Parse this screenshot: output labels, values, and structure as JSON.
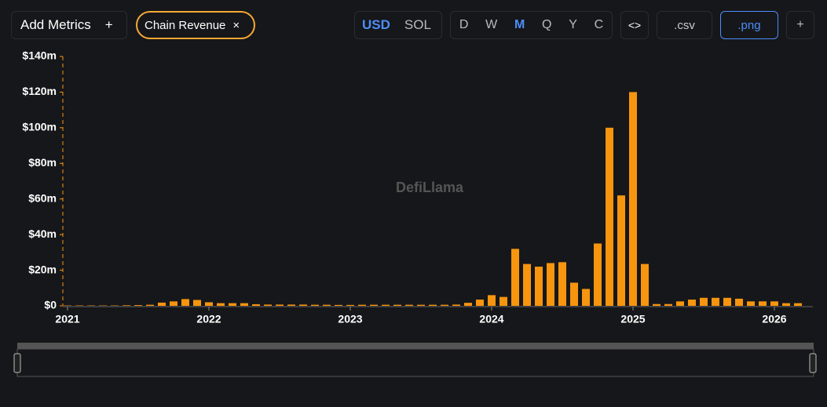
{
  "toolbar": {
    "add_metrics": "Add Metrics",
    "add_icon": "+",
    "metric_chip": "Chain Revenue",
    "chip_close": "×",
    "currencies": [
      "USD",
      "SOL"
    ],
    "periods": [
      "D",
      "W",
      "M",
      "Q",
      "Y",
      "C"
    ],
    "embed": "<>",
    "csv": ".csv",
    "png": ".png",
    "plus": "+"
  },
  "watermark": "DefiLlama",
  "chart_data": {
    "type": "bar",
    "color": "#f7950f",
    "categories": [
      "2021",
      null,
      null,
      null,
      null,
      null,
      null,
      null,
      null,
      null,
      null,
      null,
      "2022",
      null,
      null,
      null,
      null,
      null,
      null,
      null,
      null,
      null,
      null,
      null,
      "2023",
      null,
      null,
      null,
      null,
      null,
      null,
      null,
      null,
      null,
      null,
      null,
      "2024",
      null,
      null,
      null,
      null,
      null,
      null,
      null,
      null,
      null,
      null,
      null,
      "2025",
      null,
      null,
      null,
      null,
      null,
      null,
      null,
      null,
      null,
      null,
      null,
      "2026",
      null,
      null
    ],
    "values": [
      0.2,
      0.2,
      0.2,
      0.2,
      0.2,
      0.3,
      0.4,
      0.6,
      1.8,
      2.5,
      3.8,
      3.3,
      2,
      1.5,
      1.5,
      1.5,
      0.9,
      0.7,
      0.7,
      0.7,
      0.7,
      0.6,
      0.6,
      0.5,
      0.5,
      0.6,
      0.6,
      0.6,
      0.6,
      0.6,
      0.6,
      0.6,
      0.6,
      0.7,
      1.7,
      3.5,
      6,
      5,
      32,
      23.5,
      22,
      24,
      24.5,
      13,
      9.5,
      35,
      100,
      62,
      120,
      23.5,
      1,
      1,
      2.5,
      3.5,
      4.5,
      4.5,
      4.5,
      4,
      2.5,
      2.5,
      2.5,
      1.5,
      1.5
    ],
    "ylim": [
      0,
      140
    ],
    "yticks": [
      {
        "value": 0,
        "label": "$0"
      },
      {
        "value": 20,
        "label": "$20m"
      },
      {
        "value": 40,
        "label": "$40m"
      },
      {
        "value": 60,
        "label": "$60m"
      },
      {
        "value": 80,
        "label": "$80m"
      },
      {
        "value": 100,
        "label": "$100m"
      },
      {
        "value": 120,
        "label": "$120m"
      },
      {
        "value": 140,
        "label": "$140m"
      }
    ]
  }
}
